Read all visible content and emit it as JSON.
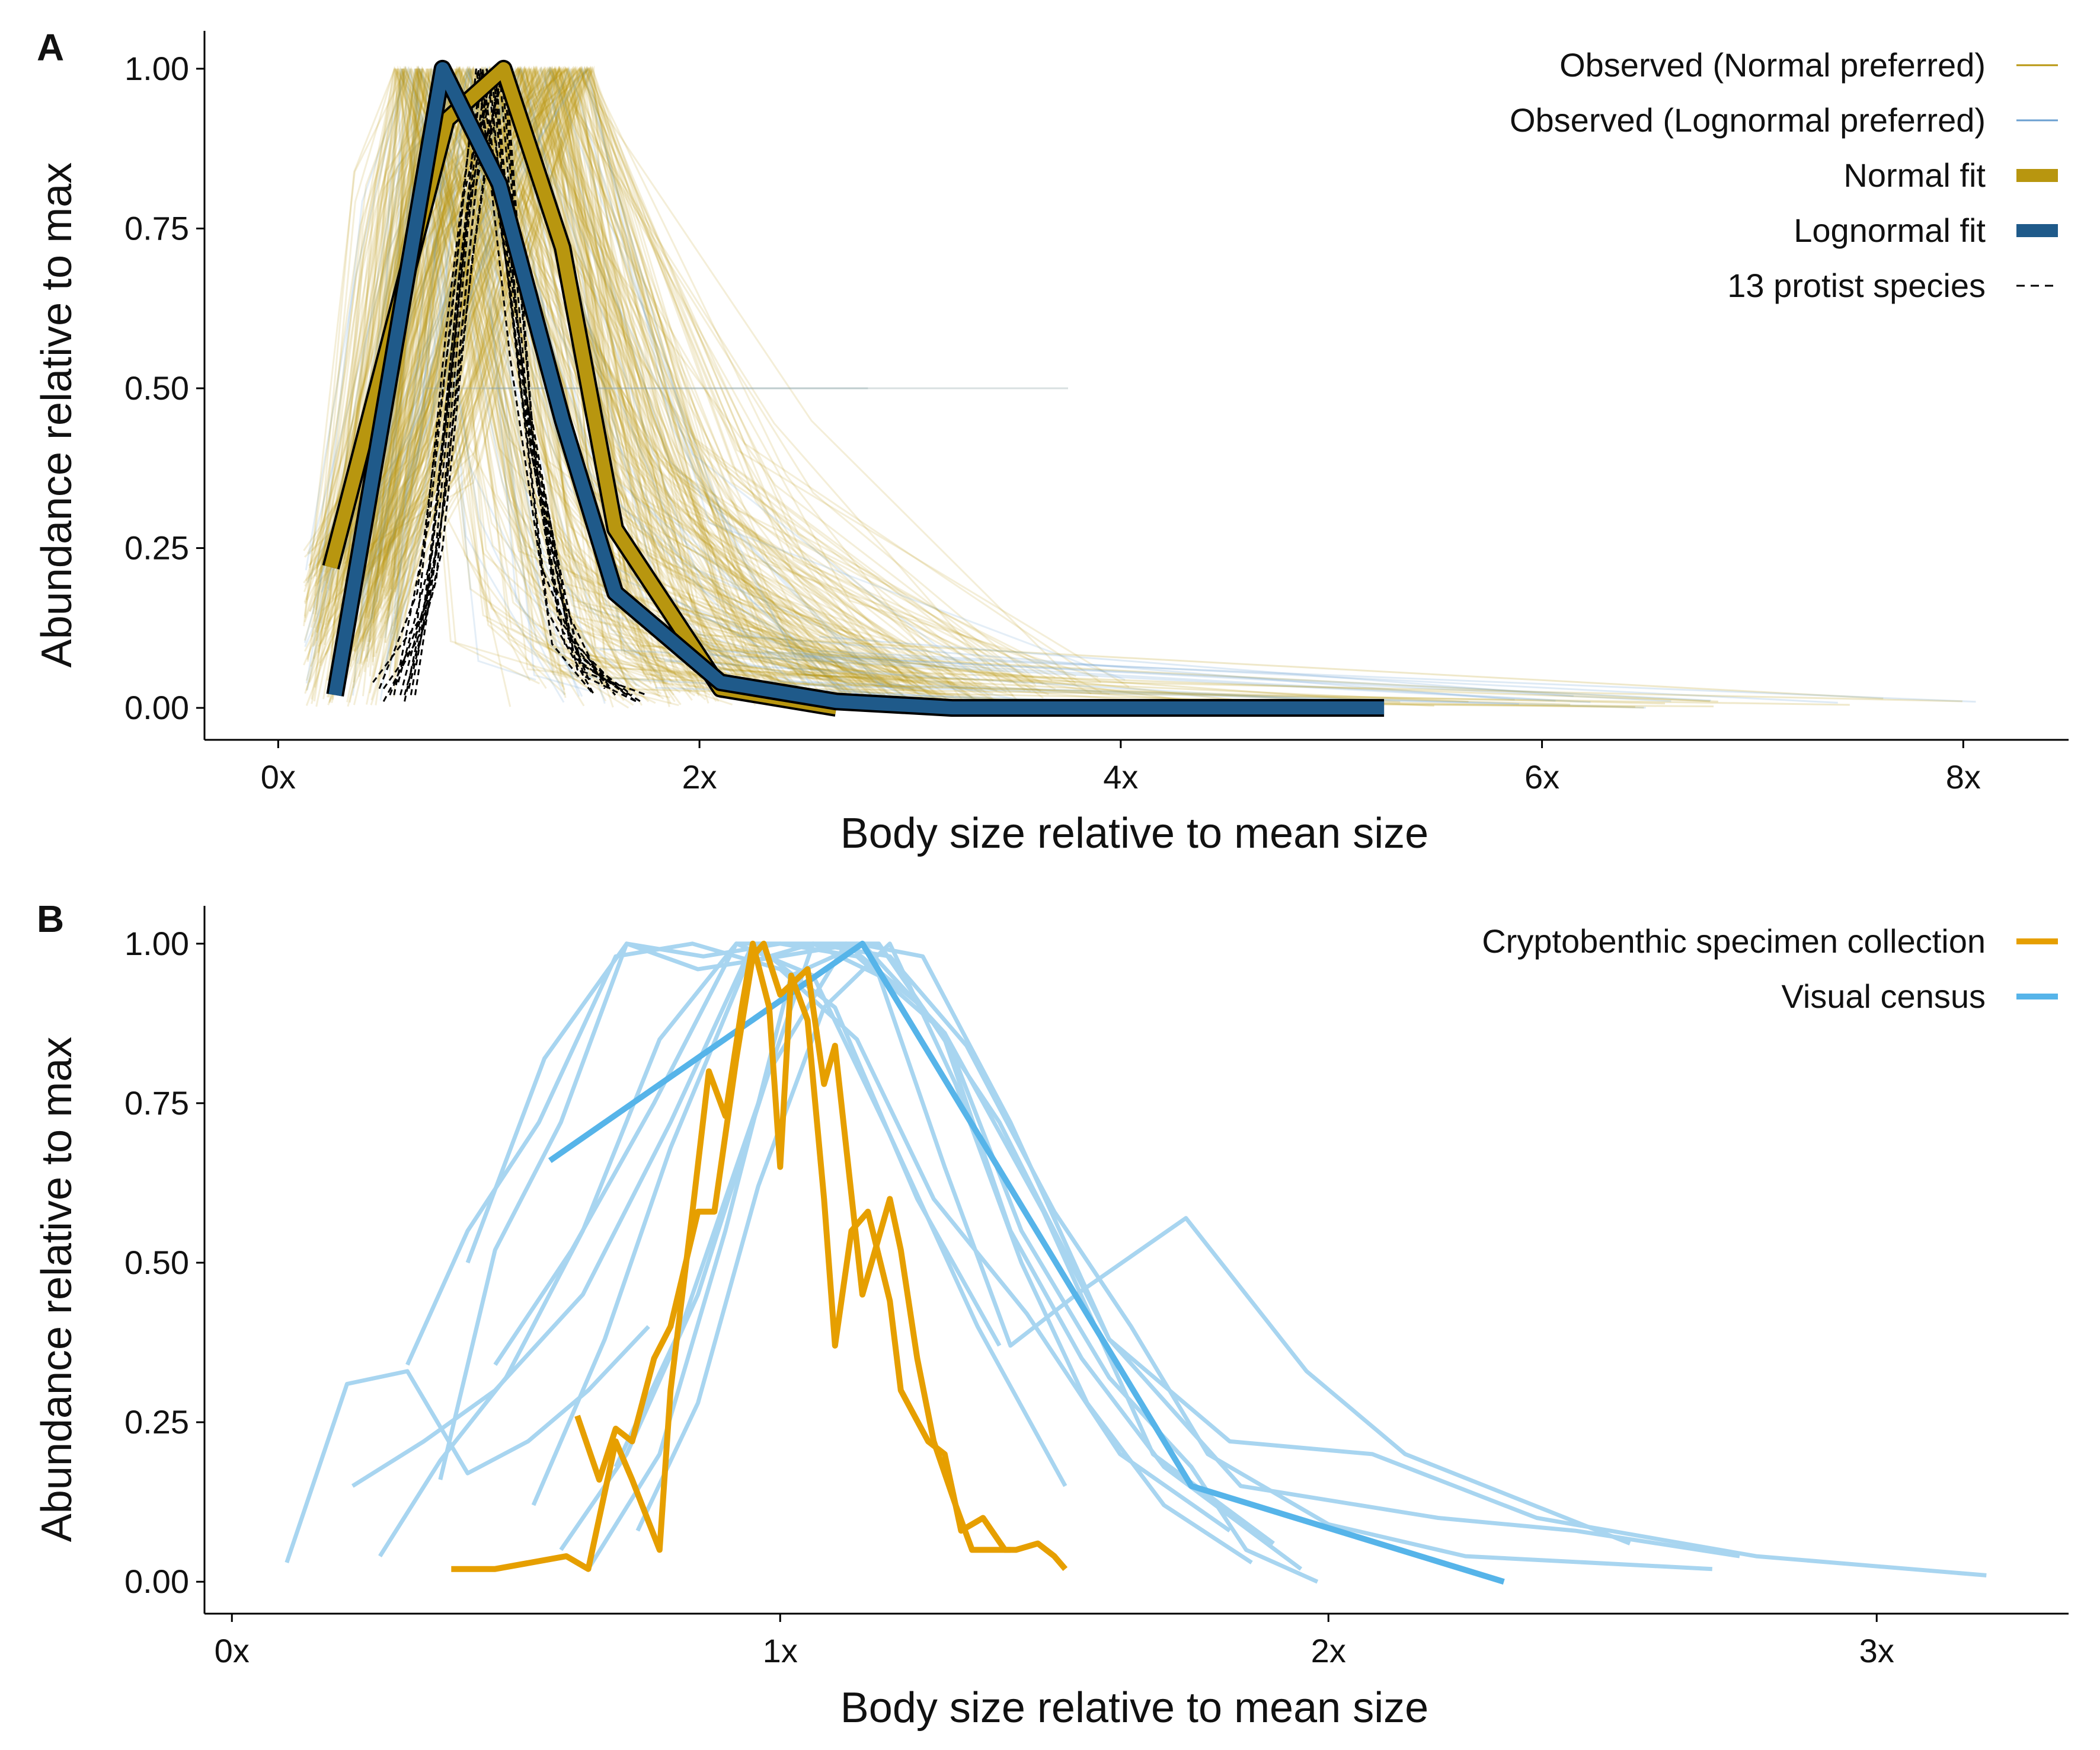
{
  "chart_data": [
    {
      "panel": "A",
      "type": "line",
      "xlabel": "Body size relative to mean size",
      "ylabel": "Abundance relative to max",
      "xlim": [
        -0.35,
        8.5
      ],
      "ylim": [
        -0.05,
        1.05
      ],
      "x_ticks": [
        0,
        2,
        4,
        6,
        8
      ],
      "x_tick_labels": [
        "0x",
        "2x",
        "4x",
        "6x",
        "8x"
      ],
      "y_ticks": [
        0,
        0.25,
        0.5,
        0.75,
        1.0
      ],
      "y_tick_labels": [
        "0.00",
        "0.25",
        "0.50",
        "0.75",
        "1.00"
      ],
      "grid": false,
      "legend_position": "top-right",
      "colors": {
        "observed_normal": "#b8960f",
        "observed_lognormal": "#6a9fd0",
        "normal_fit": "#b8960f",
        "lognormal_fit": "#1f5a8a",
        "protist": "#000000"
      },
      "legend": [
        {
          "label": "Observed (Normal preferred)",
          "style": "thin-gold"
        },
        {
          "label": "Observed (Lognormal preferred)",
          "style": "thin-blue"
        },
        {
          "label": "Normal fit",
          "style": "thick-gold"
        },
        {
          "label": "Lognormal fit",
          "style": "thick-blue"
        },
        {
          "label": "13 protist species",
          "style": "dashed-black"
        }
      ],
      "normal_fit": {
        "x": [
          0.25,
          0.8,
          1.07,
          1.35,
          1.6,
          2.1,
          2.65
        ],
        "y": [
          0.22,
          0.92,
          1.0,
          0.72,
          0.28,
          0.03,
          0.0
        ]
      },
      "lognormal_fit": {
        "x": [
          0.27,
          0.78,
          1.05,
          1.35,
          1.6,
          2.1,
          2.65,
          3.2,
          4.0,
          5.25
        ],
        "y": [
          0.02,
          1.0,
          0.82,
          0.45,
          0.18,
          0.04,
          0.01,
          0.0,
          0.0,
          0.0
        ]
      },
      "protist_species": [
        {
          "x": [
            0.5,
            0.65,
            0.8,
            0.95,
            1.1,
            1.3,
            1.5
          ],
          "y": [
            0.03,
            0.1,
            0.6,
            1.0,
            0.55,
            0.1,
            0.02
          ]
        },
        {
          "x": [
            0.6,
            0.75,
            0.9,
            1.0,
            1.15,
            1.35,
            1.6
          ],
          "y": [
            0.02,
            0.2,
            0.75,
            1.0,
            0.5,
            0.12,
            0.02
          ]
        },
        {
          "x": [
            0.45,
            0.7,
            0.85,
            0.97,
            1.12,
            1.3,
            1.55
          ],
          "y": [
            0.04,
            0.15,
            0.65,
            1.0,
            0.6,
            0.2,
            0.03
          ]
        },
        {
          "x": [
            0.55,
            0.72,
            0.88,
            1.02,
            1.18,
            1.4,
            1.7
          ],
          "y": [
            0.02,
            0.3,
            0.8,
            1.0,
            0.45,
            0.08,
            0.01
          ]
        },
        {
          "x": [
            0.62,
            0.78,
            0.92,
            1.05,
            1.2,
            1.42,
            1.75
          ],
          "y": [
            0.03,
            0.25,
            0.7,
            1.0,
            0.4,
            0.06,
            0.02
          ]
        },
        {
          "x": [
            0.5,
            0.68,
            0.83,
            0.96,
            1.1,
            1.28,
            1.5
          ],
          "y": [
            0.01,
            0.12,
            0.55,
            1.0,
            0.65,
            0.15,
            0.02
          ]
        },
        {
          "x": [
            0.58,
            0.74,
            0.9,
            1.03,
            1.16,
            1.36,
            1.62
          ],
          "y": [
            0.02,
            0.22,
            0.78,
            1.0,
            0.52,
            0.1,
            0.03
          ]
        },
        {
          "x": [
            0.65,
            0.8,
            0.95,
            1.08,
            1.22,
            1.45,
            1.7
          ],
          "y": [
            0.02,
            0.35,
            0.85,
            1.0,
            0.38,
            0.05,
            0.01
          ]
        },
        {
          "x": [
            0.48,
            0.66,
            0.82,
            0.94,
            1.08,
            1.25,
            1.48
          ],
          "y": [
            0.03,
            0.18,
            0.6,
            1.0,
            0.7,
            0.22,
            0.04
          ]
        },
        {
          "x": [
            0.6,
            0.77,
            0.93,
            1.06,
            1.2,
            1.4,
            1.68
          ],
          "y": [
            0.01,
            0.28,
            0.72,
            1.0,
            0.46,
            0.09,
            0.02
          ]
        },
        {
          "x": [
            0.53,
            0.7,
            0.86,
            0.99,
            1.14,
            1.33,
            1.58
          ],
          "y": [
            0.02,
            0.16,
            0.68,
            1.0,
            0.58,
            0.14,
            0.03
          ]
        },
        {
          "x": [
            0.57,
            0.73,
            0.89,
            1.01,
            1.17,
            1.38,
            1.65
          ],
          "y": [
            0.04,
            0.24,
            0.74,
            1.0,
            0.5,
            0.11,
            0.02
          ]
        },
        {
          "x": [
            0.63,
            0.79,
            0.94,
            1.07,
            1.21,
            1.43,
            1.72
          ],
          "y": [
            0.02,
            0.32,
            0.82,
            1.0,
            0.42,
            0.07,
            0.01
          ]
        }
      ]
    },
    {
      "panel": "B",
      "type": "line",
      "xlabel": "Body size relative to mean size",
      "ylabel": "Abundance relative to max",
      "xlim": [
        -0.05,
        3.35
      ],
      "ylim": [
        -0.05,
        1.05
      ],
      "x_ticks": [
        0,
        1,
        2,
        3
      ],
      "x_tick_labels": [
        "0x",
        "1x",
        "2x",
        "3x"
      ],
      "y_ticks": [
        0,
        0.25,
        0.5,
        0.75,
        1.0
      ],
      "y_tick_labels": [
        "0.00",
        "0.25",
        "0.50",
        "0.75",
        "1.00"
      ],
      "grid": false,
      "legend_position": "top-right",
      "colors": {
        "cryptobenthic": "#e69f00",
        "visual": "#56b4e9",
        "visual_light": "#a8d5f0"
      },
      "legend": [
        {
          "label": "Cryptobenthic specimen collection",
          "style": "orange"
        },
        {
          "label": "Visual census",
          "style": "blue"
        }
      ],
      "cryptobenthic_series": [
        {
          "x": [
            0.4,
            0.48,
            0.61,
            0.65,
            0.7,
            0.73,
            0.78,
            0.8,
            0.84,
            0.87,
            0.9,
            0.93,
            0.95,
            0.98,
            1.0,
            1.02,
            1.05,
            1.08,
            1.1,
            1.13,
            1.16,
            1.2,
            1.22,
            1.27,
            1.3,
            1.33,
            1.37,
            1.41,
            1.43,
            1.47,
            1.5,
            1.52
          ],
          "y": [
            0.02,
            0.02,
            0.04,
            0.02,
            0.22,
            0.16,
            0.05,
            0.3,
            0.58,
            0.8,
            0.73,
            0.9,
            1.0,
            0.9,
            0.65,
            0.95,
            0.88,
            0.6,
            0.37,
            0.55,
            0.58,
            0.44,
            0.3,
            0.22,
            0.2,
            0.08,
            0.1,
            0.05,
            0.05,
            0.06,
            0.04,
            0.02
          ]
        },
        {
          "x": [
            0.63,
            0.67,
            0.7,
            0.73,
            0.77,
            0.8,
            0.85,
            0.88,
            0.92,
            0.95,
            0.97,
            1.0,
            1.05,
            1.08,
            1.1,
            1.15,
            1.2,
            1.22,
            1.25,
            1.28,
            1.32,
            1.35,
            1.42
          ],
          "y": [
            0.26,
            0.16,
            0.24,
            0.22,
            0.35,
            0.4,
            0.58,
            0.58,
            0.82,
            0.98,
            1.0,
            0.92,
            0.96,
            0.78,
            0.84,
            0.45,
            0.6,
            0.52,
            0.35,
            0.22,
            0.12,
            0.05,
            0.05
          ]
        }
      ],
      "visual_highlight": {
        "x": [
          0.58,
          1.15,
          1.75,
          2.32
        ],
        "y": [
          0.66,
          1.0,
          0.15,
          0.0
        ]
      },
      "visual_series": [
        {
          "x": [
            0.1,
            0.21,
            0.32,
            0.43,
            0.54,
            0.65,
            0.76
          ],
          "y": [
            0.03,
            0.31,
            0.33,
            0.17,
            0.22,
            0.3,
            0.4
          ]
        },
        {
          "x": [
            0.22,
            0.35,
            0.48,
            0.64,
            0.8,
            0.95,
            1.1,
            1.25,
            1.4
          ],
          "y": [
            0.15,
            0.22,
            0.3,
            0.45,
            0.72,
            1.0,
            0.9,
            0.6,
            0.37
          ]
        },
        {
          "x": [
            0.27,
            0.38,
            0.5,
            0.64,
            0.78,
            0.92,
            1.06,
            1.2,
            1.36,
            1.52
          ],
          "y": [
            0.04,
            0.19,
            0.32,
            0.55,
            0.85,
            1.0,
            0.95,
            0.7,
            0.4,
            0.15
          ]
        },
        {
          "x": [
            0.32,
            0.43,
            0.56,
            0.7,
            0.84,
            1.0,
            1.14,
            1.28,
            1.45,
            1.62,
            1.82
          ],
          "y": [
            0.34,
            0.55,
            0.72,
            0.98,
            1.0,
            0.96,
            0.85,
            0.6,
            0.42,
            0.2,
            0.08
          ]
        },
        {
          "x": [
            0.38,
            0.48,
            0.6,
            0.72,
            0.86,
            1.0,
            1.14,
            1.3,
            1.48,
            1.68,
            1.9
          ],
          "y": [
            0.16,
            0.52,
            0.72,
            1.0,
            0.98,
            1.0,
            0.98,
            0.86,
            0.58,
            0.2,
            0.06
          ]
        },
        {
          "x": [
            0.43,
            0.57,
            0.72,
            0.85,
            1.0,
            1.14,
            1.26,
            1.42,
            1.6,
            1.84,
            2.2,
            2.45,
            2.75
          ],
          "y": [
            0.5,
            0.82,
            1.0,
            0.96,
            0.98,
            1.0,
            0.98,
            0.72,
            0.38,
            0.15,
            0.1,
            0.08,
            0.04
          ]
        },
        {
          "x": [
            0.48,
            0.62,
            0.77,
            0.92,
            1.06,
            1.2,
            1.34,
            1.5,
            1.64,
            1.78,
            2.0,
            2.25,
            2.7
          ],
          "y": [
            0.34,
            0.52,
            0.75,
            1.0,
            1.0,
            0.98,
            0.84,
            0.58,
            0.4,
            0.2,
            0.09,
            0.04,
            0.02
          ]
        },
        {
          "x": [
            0.55,
            0.68,
            0.8,
            0.94,
            1.06,
            1.18,
            1.3,
            1.42,
            1.55,
            1.7,
            1.95
          ],
          "y": [
            0.12,
            0.38,
            0.68,
            0.97,
            1.0,
            1.0,
            0.85,
            0.55,
            0.35,
            0.18,
            0.02
          ]
        },
        {
          "x": [
            0.6,
            0.72,
            0.85,
            0.98,
            1.12,
            1.26,
            1.4,
            1.6,
            1.82,
            2.08,
            2.38,
            2.78,
            3.2
          ],
          "y": [
            0.05,
            0.2,
            0.45,
            0.8,
            1.0,
            0.9,
            0.72,
            0.38,
            0.22,
            0.2,
            0.1,
            0.04,
            0.01
          ]
        },
        {
          "x": [
            0.65,
            0.78,
            0.9,
            1.02,
            1.15,
            1.3,
            1.44,
            1.6,
            1.75,
            1.85,
            1.98
          ],
          "y": [
            0.02,
            0.2,
            0.55,
            0.95,
            1.0,
            0.86,
            0.55,
            0.32,
            0.18,
            0.05,
            0.0
          ]
        },
        {
          "x": [
            0.7,
            0.82,
            0.94,
            1.06,
            1.18,
            1.3,
            1.42,
            1.54,
            1.74,
            1.96,
            2.14,
            2.55
          ],
          "y": [
            0.18,
            0.4,
            0.7,
            1.0,
            0.95,
            0.65,
            0.37,
            0.45,
            0.57,
            0.33,
            0.2,
            0.06
          ]
        },
        {
          "x": [
            0.74,
            0.85,
            0.96,
            1.08,
            1.2,
            1.32,
            1.44,
            1.56,
            1.7,
            1.86
          ],
          "y": [
            0.08,
            0.28,
            0.62,
            0.9,
            1.0,
            0.78,
            0.5,
            0.28,
            0.12,
            0.03
          ]
        }
      ]
    }
  ]
}
